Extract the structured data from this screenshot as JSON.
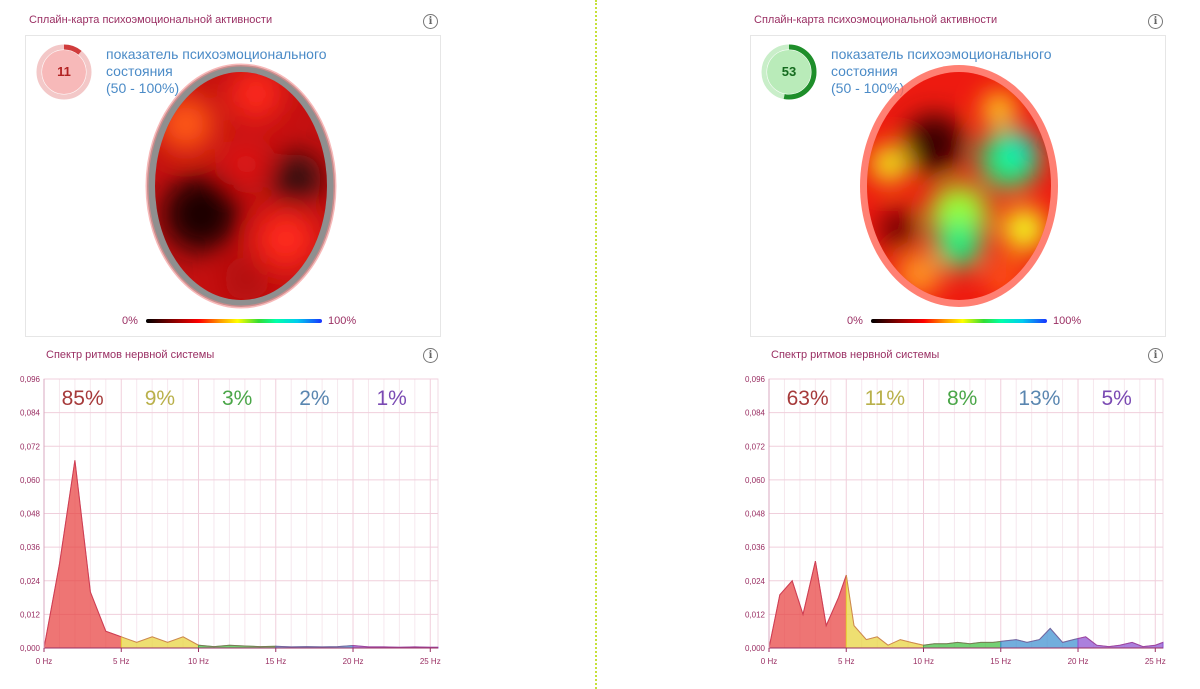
{
  "panels": [
    {
      "map_title": "Сплайн-карта психоэмоциональной активности",
      "gauge_value": "11",
      "gauge_fraction": 0.11,
      "gauge_color": "#d03c3c",
      "gauge_fill": "#f7b9b9",
      "gauge_track": "#f3c8c8",
      "indicator_line1": "показатель психоэмоционального",
      "indicator_line2": "состояния",
      "indicator_line3": "(50 - 100%)",
      "scale_min": "0%",
      "scale_max": "100%",
      "spectrum_title": "Спектр ритмов нервной системы"
    },
    {
      "map_title": "Сплайн-карта психоэмоциональной активности",
      "gauge_value": "53",
      "gauge_fraction": 0.53,
      "gauge_color": "#1e8e2a",
      "gauge_fill": "#b9ebb9",
      "gauge_track": "#c9eec9",
      "indicator_line1": "показатель психоэмоционального",
      "indicator_line2": "состояния",
      "indicator_line3": "(50 - 100%)",
      "scale_min": "0%",
      "scale_max": "100%",
      "spectrum_title": "Спектр ритмов нервной системы"
    }
  ],
  "chart_data": [
    {
      "type": "area",
      "title": "Спектр ритмов нервной системы",
      "xlabel": "Hz",
      "ylabel": "",
      "xlim": [
        0,
        25.5
      ],
      "ylim": [
        0,
        0.096
      ],
      "y_ticks": [
        "0,000",
        "0,012",
        "0,024",
        "0,036",
        "0,048",
        "0,060",
        "0,072",
        "0,084",
        "0,096"
      ],
      "x_ticks": [
        "0 Hz",
        "5 Hz",
        "10 Hz",
        "15 Hz",
        "20 Hz",
        "25 Hz"
      ],
      "band_percentages": [
        "85%",
        "9%",
        "3%",
        "2%",
        "1%"
      ],
      "band_colors": [
        "#e8403f",
        "#e8d23a",
        "#3fbf3f",
        "#3b8fd0",
        "#8a4fd0"
      ],
      "band_label_colors": [
        "#a63a3a",
        "#b9b04a",
        "#4aa648",
        "#5a86b0",
        "#7a4ab3"
      ],
      "band_edges": [
        0,
        5,
        10,
        15,
        20,
        25.5
      ],
      "x": [
        0,
        1,
        2,
        3,
        4,
        5,
        6,
        7,
        8,
        9,
        10,
        11,
        12,
        13,
        14,
        15,
        16,
        17,
        18,
        19,
        20,
        21,
        22,
        23,
        24,
        25,
        25.5
      ],
      "y": [
        0.0,
        0.03,
        0.067,
        0.02,
        0.006,
        0.004,
        0.002,
        0.004,
        0.002,
        0.004,
        0.001,
        0.0005,
        0.001,
        0.0007,
        0.0005,
        0.0006,
        0.0004,
        0.0005,
        0.0004,
        0.0005,
        0.0009,
        0.0004,
        0.0004,
        0.0003,
        0.0004,
        0.0003,
        0.0003
      ]
    },
    {
      "type": "area",
      "title": "Спектр ритмов нервной системы",
      "xlabel": "Hz",
      "ylabel": "",
      "xlim": [
        0,
        25.5
      ],
      "ylim": [
        0,
        0.096
      ],
      "y_ticks": [
        "0,000",
        "0,012",
        "0,024",
        "0,036",
        "0,048",
        "0,060",
        "0,072",
        "0,084",
        "0,096"
      ],
      "x_ticks": [
        "0 Hz",
        "5 Hz",
        "10 Hz",
        "15 Hz",
        "20 Hz",
        "25 Hz"
      ],
      "band_percentages": [
        "63%",
        "11%",
        "8%",
        "13%",
        "5%"
      ],
      "band_colors": [
        "#e8403f",
        "#e8d23a",
        "#3fbf3f",
        "#3b8fd0",
        "#8a4fd0"
      ],
      "band_label_colors": [
        "#a63a3a",
        "#b9b04a",
        "#4aa648",
        "#5a86b0",
        "#7a4ab3"
      ],
      "band_edges": [
        0,
        5,
        10,
        15,
        20,
        25.5
      ],
      "x": [
        0,
        0.7,
        1.5,
        2.2,
        3.0,
        3.7,
        4.5,
        5.0,
        5.5,
        6.3,
        7.0,
        7.7,
        8.5,
        9.2,
        10.0,
        10.7,
        11.5,
        12.2,
        13.0,
        13.7,
        14.5,
        15.2,
        16.0,
        16.7,
        17.5,
        18.2,
        19.0,
        19.7,
        20.5,
        21.2,
        22.0,
        22.7,
        23.5,
        24.2,
        25.0,
        25.5
      ],
      "y": [
        0.0,
        0.019,
        0.024,
        0.012,
        0.031,
        0.008,
        0.018,
        0.026,
        0.008,
        0.003,
        0.004,
        0.001,
        0.003,
        0.002,
        0.001,
        0.0015,
        0.0015,
        0.002,
        0.0015,
        0.002,
        0.002,
        0.0025,
        0.003,
        0.002,
        0.003,
        0.007,
        0.002,
        0.003,
        0.004,
        0.001,
        0.0005,
        0.001,
        0.002,
        0.0005,
        0.001,
        0.002
      ]
    }
  ]
}
